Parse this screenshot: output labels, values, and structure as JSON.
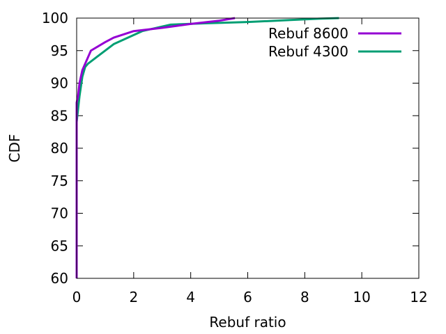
{
  "chart_data": {
    "type": "line",
    "xlabel": "Rebuf ratio",
    "ylabel": "CDF",
    "xlim": [
      0,
      12
    ],
    "ylim": [
      60,
      100
    ],
    "xticks": [
      "0",
      "2",
      "4",
      "6",
      "8",
      "10",
      "12"
    ],
    "yticks": [
      "60",
      "65",
      "70",
      "75",
      "80",
      "85",
      "90",
      "95",
      "100"
    ],
    "grid": false,
    "legend_position": "top-right",
    "series": [
      {
        "name": "Rebuf 8600",
        "color": "#9400d3",
        "x": [
          0,
          0,
          0.05,
          0.1,
          0.2,
          0.5,
          1.0,
          1.3,
          2.0,
          3.0,
          4.0,
          5.0,
          5.55
        ],
        "y": [
          60,
          87,
          88,
          90,
          92,
          95,
          96.3,
          97,
          98,
          98.5,
          99.1,
          99.6,
          100
        ]
      },
      {
        "name": "Rebuf 4300",
        "color": "#009e73",
        "x": [
          0,
          0,
          0.1,
          0.2,
          0.3,
          0.4,
          0.7,
          1.3,
          2.3,
          3.3,
          4.5,
          6.0,
          7.5,
          8.5,
          9.2
        ],
        "y": [
          60,
          84,
          88,
          91,
          92.5,
          93,
          94,
          96,
          98,
          99,
          99.2,
          99.4,
          99.7,
          99.9,
          100
        ]
      }
    ]
  }
}
